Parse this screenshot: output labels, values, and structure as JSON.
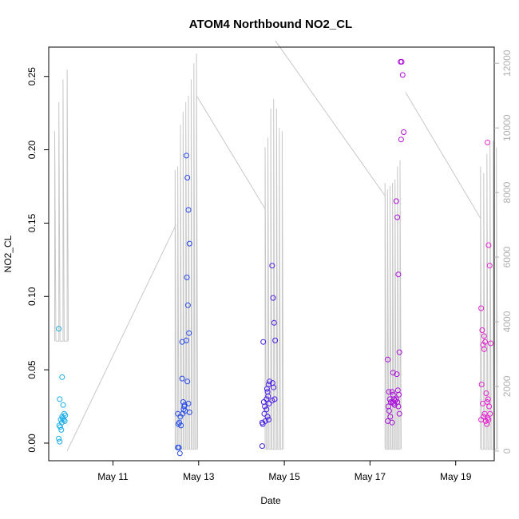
{
  "chart_data": {
    "type": "scatter",
    "title": "ATOM4 Northbound NO2_CL",
    "xlabel": "Date",
    "ylabel": "NO2_CL",
    "x_ticks": [
      "May 11",
      "May 13",
      "May 15",
      "May 17",
      "May 19"
    ],
    "x_tick_days": [
      11,
      13,
      15,
      17,
      19
    ],
    "xlim_days": [
      9.5,
      19.9
    ],
    "ylim": [
      -0.012,
      0.27
    ],
    "y_ticks": [
      "0.00",
      "0.05",
      "0.10",
      "0.15",
      "0.20",
      "0.25"
    ],
    "y_tick_values": [
      0,
      0.05,
      0.1,
      0.15,
      0.2,
      0.25
    ],
    "y2_ticks": [
      "0",
      "2000",
      "4000",
      "6000",
      "8000",
      "10000",
      "12000"
    ],
    "y2_tick_values": [
      0,
      2000,
      4000,
      6000,
      8000,
      10000,
      12000
    ],
    "y2lim": [
      -300,
      12500
    ],
    "colors": {
      "points_gradient": [
        "#1ab0e8",
        "#2a6fef",
        "#2020e6",
        "#7a18e6",
        "#b010d8",
        "#e820d2"
      ],
      "secondary_line": "#c8c8c8",
      "axis": "#000000",
      "right_axis": "#b0b0b0"
    },
    "grid": false,
    "legend": "none",
    "scatter_series": [
      {
        "day": 9.77,
        "values": [
          0.078,
          0.03,
          0.016,
          0.014,
          0.012,
          0.011,
          0.009,
          0.003,
          0.001
        ]
      },
      {
        "day": 9.85,
        "values": [
          0.045,
          0.026,
          0.02,
          0.019,
          0.017,
          0.016,
          0.015,
          0.018
        ]
      },
      {
        "day": 12.55,
        "values": [
          -0.003,
          -0.003,
          -0.007,
          0.012,
          0.013,
          0.014,
          0.018,
          0.02
        ]
      },
      {
        "day": 12.65,
        "values": [
          0.044,
          0.028,
          0.025,
          0.022,
          0.02,
          0.023,
          0.026,
          0.069
        ]
      },
      {
        "day": 12.75,
        "values": [
          0.196,
          0.181,
          0.159,
          0.136,
          0.113,
          0.094,
          0.075,
          0.07,
          0.042,
          0.027,
          0.021
        ]
      },
      {
        "day": 14.52,
        "values": [
          -0.002,
          0.069,
          0.02,
          0.015,
          0.013,
          0.028,
          0.025,
          0.014
        ]
      },
      {
        "day": 14.62,
        "values": [
          0.03,
          0.035,
          0.04,
          0.042,
          0.037,
          0.032,
          0.027,
          0.023,
          0.018,
          0.016
        ]
      },
      {
        "day": 14.75,
        "values": [
          0.121,
          0.099,
          0.082,
          0.07,
          0.041,
          0.038,
          0.03,
          0.029
        ]
      },
      {
        "day": 17.45,
        "values": [
          0.057,
          0.035,
          0.03,
          0.028,
          0.025,
          0.022,
          0.018,
          0.015
        ]
      },
      {
        "day": 17.55,
        "values": [
          0.035,
          0.033,
          0.03,
          0.029,
          0.028,
          0.027,
          0.026,
          0.014,
          0.048
        ]
      },
      {
        "day": 17.65,
        "values": [
          0.165,
          0.154,
          0.115,
          0.062,
          0.047,
          0.036,
          0.033,
          0.03,
          0.028,
          0.025,
          0.02
        ]
      },
      {
        "day": 17.75,
        "values": [
          0.26,
          0.26,
          0.251,
          0.212,
          0.207
        ]
      },
      {
        "day": 19.63,
        "values": [
          0.092,
          0.077,
          0.067,
          0.064,
          0.04,
          0.027,
          0.018,
          0.016
        ]
      },
      {
        "day": 19.7,
        "values": [
          0.073,
          0.069,
          0.034,
          0.028,
          0.02,
          0.015,
          0.013
        ]
      },
      {
        "day": 19.78,
        "values": [
          0.205,
          0.135,
          0.121,
          0.068,
          0.03,
          0.025,
          0.02,
          0.017,
          0.016
        ]
      }
    ],
    "secondary_series": {
      "name": "",
      "spikes": [
        {
          "start": 9.64,
          "end": 9.93,
          "low": 3400,
          "highs": [
            9900,
            10800,
            11500,
            11800
          ]
        },
        {
          "start": 12.45,
          "end": 12.95,
          "low": 50,
          "highs": [
            8700,
            8800,
            10100,
            10500,
            10800,
            11000,
            11500,
            12000,
            12300
          ]
        },
        {
          "start": 14.55,
          "end": 14.95,
          "low": 50,
          "highs": [
            9400,
            9700,
            10600,
            10900,
            10600,
            10000,
            9900
          ]
        },
        {
          "start": 17.35,
          "end": 17.7,
          "low": 50,
          "highs": [
            8300,
            8100,
            8200,
            8300,
            8400,
            8800,
            9000
          ]
        },
        {
          "start": 19.58,
          "end": 19.95,
          "low": 50,
          "highs": [
            8800,
            8600,
            9200,
            9500,
            9600,
            9400
          ]
        }
      ],
      "connectors": [
        {
          "x": [
            9.93,
            12.47
          ],
          "y": [
            0,
            7000
          ]
        },
        {
          "x": [
            12.95,
            14.55
          ],
          "y": [
            11000,
            7500
          ]
        },
        {
          "x": [
            14.79,
            17.35
          ],
          "y": [
            12700,
            7900
          ]
        },
        {
          "x": [
            17.83,
            19.58
          ],
          "y": [
            11100,
            7200
          ]
        }
      ]
    }
  }
}
